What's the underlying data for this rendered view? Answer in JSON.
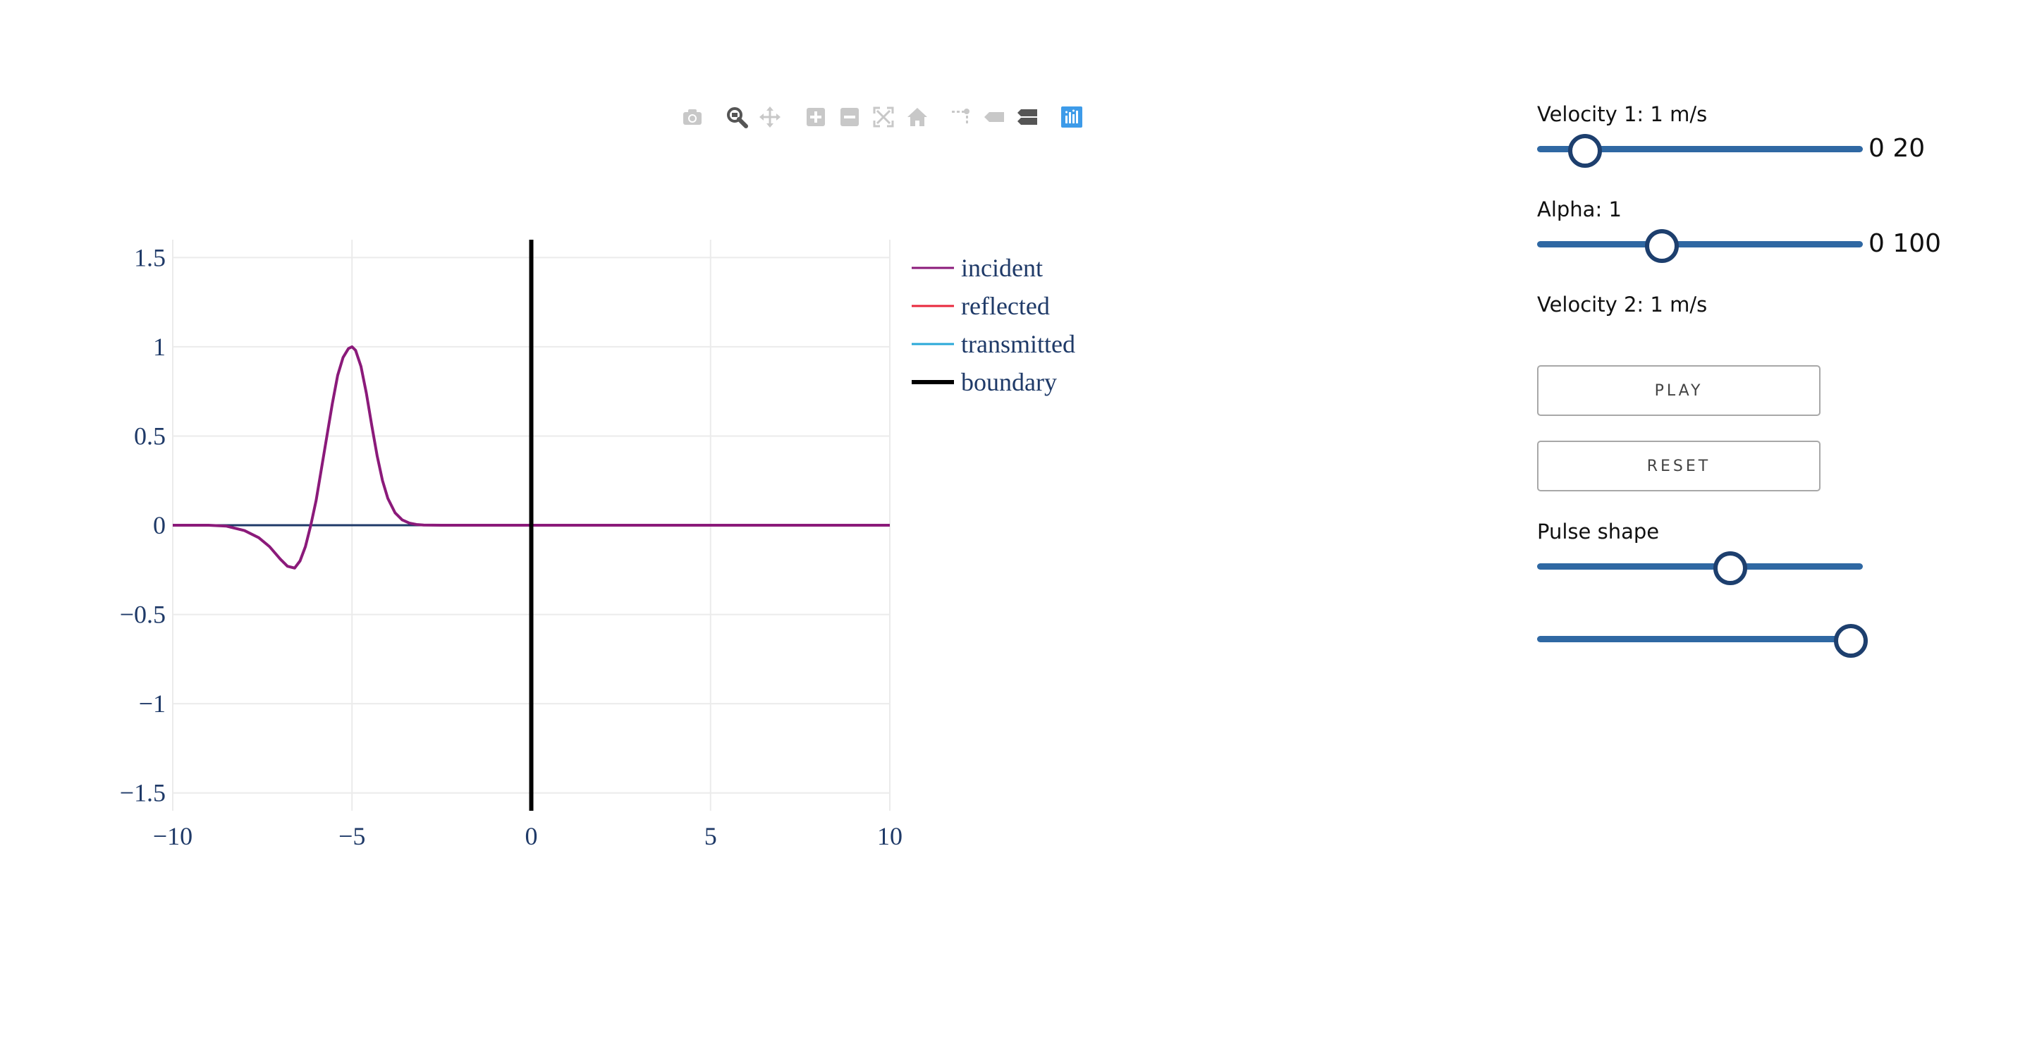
{
  "modebar": {
    "buttons": [
      {
        "name": "camera-icon",
        "color": "#c8c8c8"
      },
      {
        "name": "zoom-icon",
        "color": "#555555"
      },
      {
        "name": "pan-icon",
        "color": "#c8c8c8"
      },
      {
        "name": "zoom-in-icon",
        "color": "#c8c8c8"
      },
      {
        "name": "zoom-out-icon",
        "color": "#c8c8c8"
      },
      {
        "name": "autoscale-icon",
        "color": "#c8c8c8"
      },
      {
        "name": "home-icon",
        "color": "#c8c8c8"
      },
      {
        "name": "spike-lines-icon",
        "color": "#c8c8c8"
      },
      {
        "name": "hover-closest-icon",
        "color": "#c8c8c8"
      },
      {
        "name": "hover-compare-icon",
        "color": "#555555"
      },
      {
        "name": "plotly-logo-icon",
        "color": "#3d9be9"
      }
    ]
  },
  "chart_data": {
    "type": "line",
    "xlim": [
      -10,
      10
    ],
    "ylim": [
      -1.6,
      1.6
    ],
    "x_ticks": [
      -10,
      -5,
      0,
      5,
      10
    ],
    "x_tick_labels": [
      "−10",
      "−5",
      "0",
      "5",
      "10"
    ],
    "y_ticks": [
      1.5,
      1,
      0.5,
      0,
      -0.5,
      -1,
      -1.5
    ],
    "y_tick_labels": [
      "1.5",
      "1",
      "0.5",
      "0",
      "−0.5",
      "−1",
      "−1.5"
    ],
    "grid": true,
    "legend_position": "top-right",
    "series": [
      {
        "name": "incident",
        "color": "#8b1a7a",
        "x": [
          -10,
          -9,
          -8.5,
          -8,
          -7.6,
          -7.3,
          -7,
          -6.8,
          -6.6,
          -6.45,
          -6.3,
          -6.15,
          -6,
          -5.85,
          -5.7,
          -5.55,
          -5.4,
          -5.25,
          -5.1,
          -5,
          -4.9,
          -4.75,
          -4.6,
          -4.45,
          -4.3,
          -4.15,
          -4,
          -3.8,
          -3.6,
          -3.4,
          -3.2,
          -3,
          -2.5,
          -2,
          0,
          5,
          10
        ],
        "y": [
          0,
          0,
          -0.005,
          -0.03,
          -0.07,
          -0.12,
          -0.19,
          -0.23,
          -0.24,
          -0.2,
          -0.12,
          0.0,
          0.14,
          0.32,
          0.5,
          0.68,
          0.84,
          0.94,
          0.99,
          1.0,
          0.98,
          0.89,
          0.74,
          0.56,
          0.39,
          0.25,
          0.15,
          0.07,
          0.03,
          0.012,
          0.004,
          0.001,
          0,
          0,
          0,
          0,
          0
        ]
      },
      {
        "name": "reflected",
        "color": "#e8283c",
        "x": [
          -10,
          0
        ],
        "y": [
          0,
          0
        ]
      },
      {
        "name": "transmitted",
        "color": "#29a8d8",
        "x": [
          0,
          10
        ],
        "y": [
          0,
          0
        ]
      },
      {
        "name": "boundary",
        "color": "#000000",
        "x": [
          0,
          0
        ],
        "y": [
          -1.6,
          1.6
        ]
      }
    ],
    "baseline_color": "#1f3a68"
  },
  "controls": {
    "velocity1": {
      "label": "Velocity 1: 1 m/s",
      "min": "0",
      "max": "20",
      "value": 1,
      "range_text": "0 20"
    },
    "alpha": {
      "label": "Alpha: 1",
      "min": "0",
      "max": "100",
      "value": 0.37,
      "range_text": "0 100"
    },
    "velocity2": {
      "label": "Velocity 2: 1 m/s"
    },
    "play_label": "PLAY",
    "reset_label": "RESET",
    "pulse_shape": {
      "label": "Pulse shape",
      "value": 0.58
    },
    "extra_slider": {
      "value": 0.95
    }
  }
}
